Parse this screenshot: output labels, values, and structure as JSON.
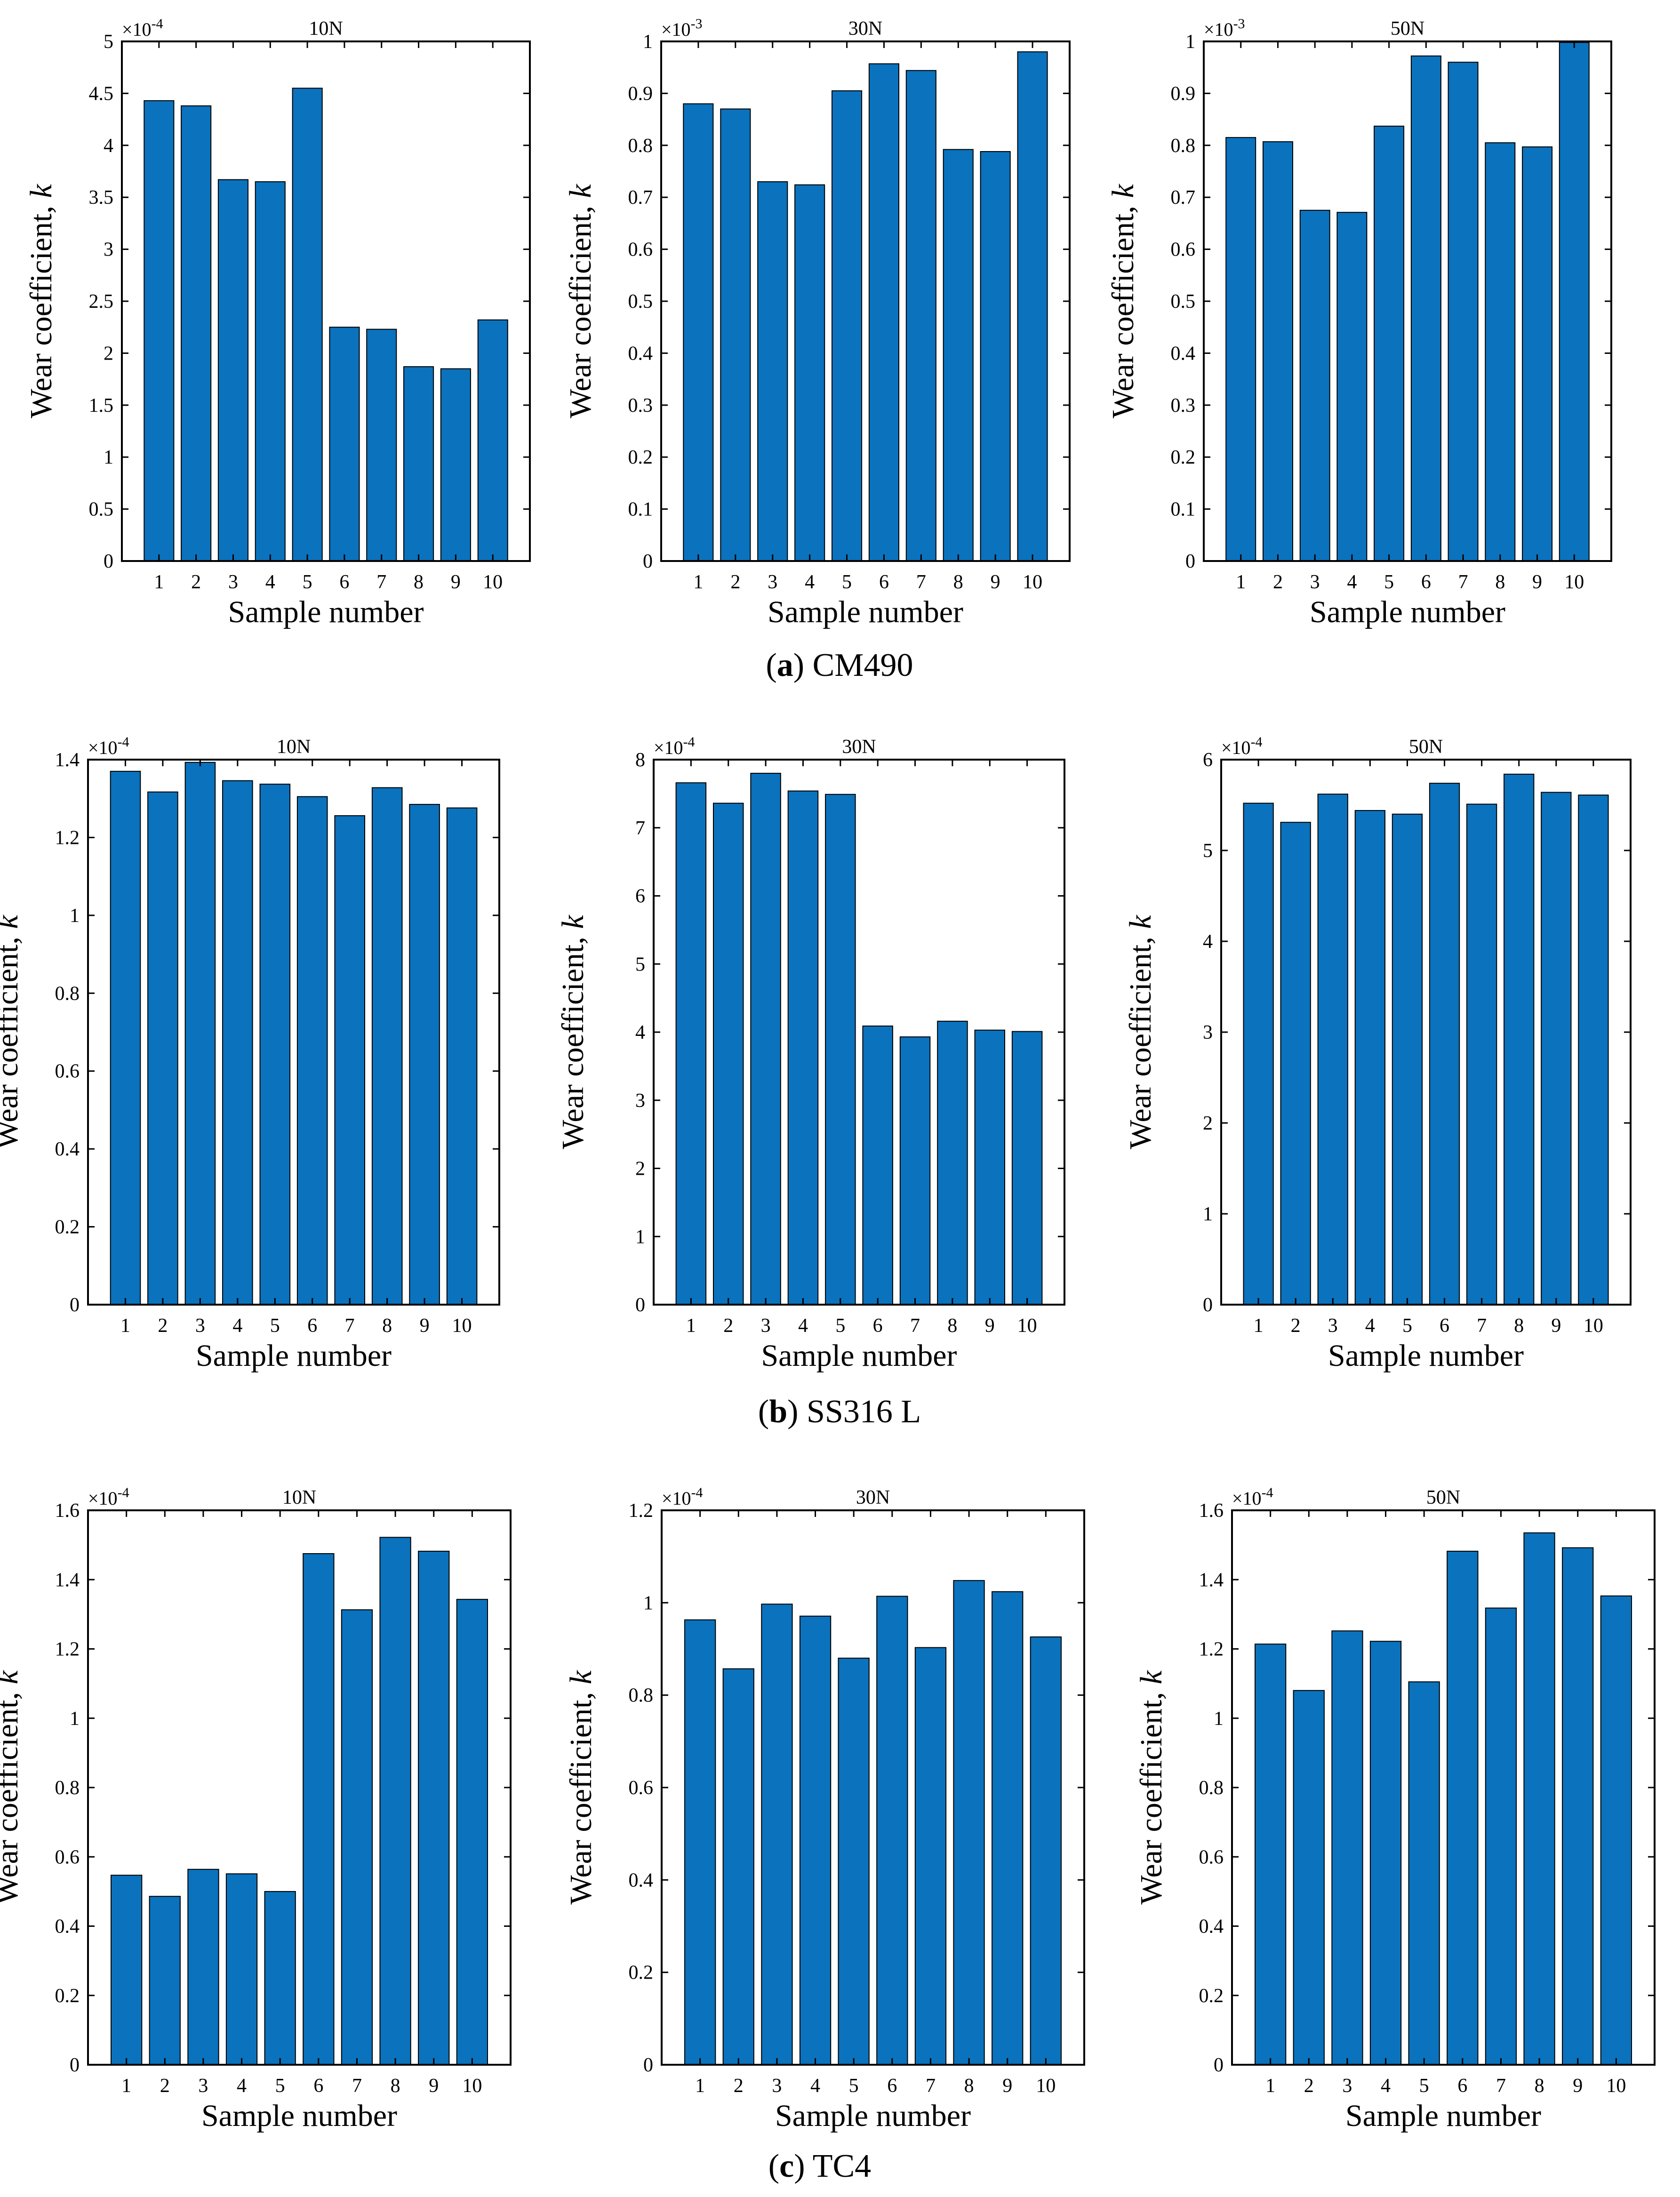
{
  "figure": {
    "captions": [
      {
        "letter": "a",
        "text": " CM490"
      },
      {
        "letter": "b",
        "text": " SS316 L"
      },
      {
        "letter": "c",
        "text": " TC4"
      }
    ]
  },
  "colors": {
    "bar_fill": "#0b72bd",
    "bar_edge": "#000000",
    "axis": "#000000"
  },
  "chart_data": [
    {
      "type": "bar",
      "title": "10N",
      "xlabel": "Sample number",
      "ylabel_main": "Wear coefficient, ",
      "ylabel_var": "k",
      "exponent_base": "×10",
      "exponent": "-4",
      "categories": [
        "1",
        "2",
        "3",
        "4",
        "5",
        "6",
        "7",
        "8",
        "9",
        "10"
      ],
      "values": [
        4.43,
        4.38,
        3.67,
        3.65,
        4.55,
        2.25,
        2.23,
        1.87,
        1.85,
        2.32
      ],
      "ylim": [
        0,
        5
      ],
      "yticks": [
        0,
        0.5,
        1,
        1.5,
        2,
        2.5,
        3,
        3.5,
        4,
        4.5,
        5
      ],
      "yticklabels": [
        "0",
        "0.5",
        "1",
        "1.5",
        "2",
        "2.5",
        "3",
        "3.5",
        "4",
        "4.5",
        "5"
      ]
    },
    {
      "type": "bar",
      "title": "30N",
      "xlabel": "Sample number",
      "ylabel_main": "Wear coefficient, ",
      "ylabel_var": "k",
      "exponent_base": "×10",
      "exponent": "-3",
      "categories": [
        "1",
        "2",
        "3",
        "4",
        "5",
        "6",
        "7",
        "8",
        "9",
        "10"
      ],
      "values": [
        0.88,
        0.87,
        0.73,
        0.724,
        0.905,
        0.957,
        0.944,
        0.792,
        0.788,
        0.98
      ],
      "ylim": [
        0,
        1
      ],
      "yticks": [
        0,
        0.1,
        0.2,
        0.3,
        0.4,
        0.5,
        0.6,
        0.7,
        0.8,
        0.9,
        1
      ],
      "yticklabels": [
        "0",
        "0.1",
        "0.2",
        "0.3",
        "0.4",
        "0.5",
        "0.6",
        "0.7",
        "0.8",
        "0.9",
        "1"
      ]
    },
    {
      "type": "bar",
      "title": "50N",
      "xlabel": "Sample number",
      "ylabel_main": "Wear coefficient, ",
      "ylabel_var": "k",
      "exponent_base": "×10",
      "exponent": "-3",
      "categories": [
        "1",
        "2",
        "3",
        "4",
        "5",
        "6",
        "7",
        "8",
        "9",
        "10"
      ],
      "values": [
        0.815,
        0.807,
        0.675,
        0.671,
        0.837,
        0.972,
        0.96,
        0.805,
        0.797,
        0.998
      ],
      "ylim": [
        0,
        1
      ],
      "yticks": [
        0,
        0.1,
        0.2,
        0.3,
        0.4,
        0.5,
        0.6,
        0.7,
        0.8,
        0.9,
        1
      ],
      "yticklabels": [
        "0",
        "0.1",
        "0.2",
        "0.3",
        "0.4",
        "0.5",
        "0.6",
        "0.7",
        "0.8",
        "0.9",
        "1"
      ]
    },
    {
      "type": "bar",
      "title": "10N",
      "xlabel": "Sample number",
      "ylabel_main": "Wear coefficient, ",
      "ylabel_var": "k",
      "exponent_base": "×10",
      "exponent": "-4",
      "categories": [
        "1",
        "2",
        "3",
        "4",
        "5",
        "6",
        "7",
        "8",
        "9",
        "10"
      ],
      "values": [
        1.37,
        1.317,
        1.393,
        1.346,
        1.337,
        1.305,
        1.256,
        1.328,
        1.285,
        1.276
      ],
      "ylim": [
        0,
        1.4
      ],
      "yticks": [
        0,
        0.2,
        0.4,
        0.6,
        0.8,
        1,
        1.2,
        1.4
      ],
      "yticklabels": [
        "0",
        "0.2",
        "0.4",
        "0.6",
        "0.8",
        "1",
        "1.2",
        "1.4"
      ]
    },
    {
      "type": "bar",
      "title": "30N",
      "xlabel": "Sample number",
      "ylabel_main": "Wear coefficient, ",
      "ylabel_var": "k",
      "exponent_base": "×10",
      "exponent": "-4",
      "categories": [
        "1",
        "2",
        "3",
        "4",
        "5",
        "6",
        "7",
        "8",
        "9",
        "10"
      ],
      "values": [
        7.66,
        7.36,
        7.8,
        7.54,
        7.49,
        4.09,
        3.93,
        4.16,
        4.03,
        4.01
      ],
      "ylim": [
        0,
        8
      ],
      "yticks": [
        0,
        1,
        2,
        3,
        4,
        5,
        6,
        7,
        8
      ],
      "yticklabels": [
        "0",
        "1",
        "2",
        "3",
        "4",
        "5",
        "6",
        "7",
        "8"
      ]
    },
    {
      "type": "bar",
      "title": "50N",
      "xlabel": "Sample number",
      "ylabel_main": "Wear coefficient, ",
      "ylabel_var": "k",
      "exponent_base": "×10",
      "exponent": "-4",
      "categories": [
        "1",
        "2",
        "3",
        "4",
        "5",
        "6",
        "7",
        "8",
        "9",
        "10"
      ],
      "values": [
        5.52,
        5.31,
        5.62,
        5.44,
        5.4,
        5.74,
        5.51,
        5.84,
        5.64,
        5.61
      ],
      "ylim": [
        0,
        6
      ],
      "yticks": [
        0,
        1,
        2,
        3,
        4,
        5,
        6
      ],
      "yticklabels": [
        "0",
        "1",
        "2",
        "3",
        "4",
        "5",
        "6"
      ]
    },
    {
      "type": "bar",
      "title": "10N",
      "xlabel": "Sample number",
      "ylabel_main": "Wear coefficient, ",
      "ylabel_var": "k",
      "exponent_base": "×10",
      "exponent": "-4",
      "categories": [
        "1",
        "2",
        "3",
        "4",
        "5",
        "6",
        "7",
        "8",
        "9",
        "10"
      ],
      "values": [
        0.547,
        0.486,
        0.564,
        0.551,
        0.5,
        1.475,
        1.313,
        1.522,
        1.482,
        1.343
      ],
      "ylim": [
        0,
        1.6
      ],
      "yticks": [
        0,
        0.2,
        0.4,
        0.6,
        0.8,
        1,
        1.2,
        1.4,
        1.6
      ],
      "yticklabels": [
        "0",
        "0.2",
        "0.4",
        "0.6",
        "0.8",
        "1",
        "1.2",
        "1.4",
        "1.6"
      ]
    },
    {
      "type": "bar",
      "title": "30N",
      "xlabel": "Sample number",
      "ylabel_main": "Wear coefficient, ",
      "ylabel_var": "k",
      "exponent_base": "×10",
      "exponent": "-4",
      "categories": [
        "1",
        "2",
        "3",
        "4",
        "5",
        "6",
        "7",
        "8",
        "9",
        "10"
      ],
      "values": [
        0.963,
        0.857,
        0.997,
        0.971,
        0.88,
        1.014,
        0.903,
        1.048,
        1.024,
        0.926
      ],
      "ylim": [
        0,
        1.2
      ],
      "yticks": [
        0,
        0.2,
        0.4,
        0.6,
        0.8,
        1,
        1.2
      ],
      "yticklabels": [
        "0",
        "0.2",
        "0.4",
        "0.6",
        "0.8",
        "1",
        "1.2"
      ]
    },
    {
      "type": "bar",
      "title": "50N",
      "xlabel": "Sample number",
      "ylabel_main": "Wear coefficient, ",
      "ylabel_var": "k",
      "exponent_base": "×10",
      "exponent": "-4",
      "categories": [
        "1",
        "2",
        "3",
        "4",
        "5",
        "6",
        "7",
        "8",
        "9",
        "10"
      ],
      "values": [
        1.214,
        1.08,
        1.252,
        1.222,
        1.105,
        1.482,
        1.318,
        1.535,
        1.492,
        1.353
      ],
      "ylim": [
        0,
        1.6
      ],
      "yticks": [
        0,
        0.2,
        0.4,
        0.6,
        0.8,
        1,
        1.2,
        1.4,
        1.6
      ],
      "yticklabels": [
        "0",
        "0.2",
        "0.4",
        "0.6",
        "0.8",
        "1",
        "1.2",
        "1.4",
        "1.6"
      ]
    }
  ]
}
